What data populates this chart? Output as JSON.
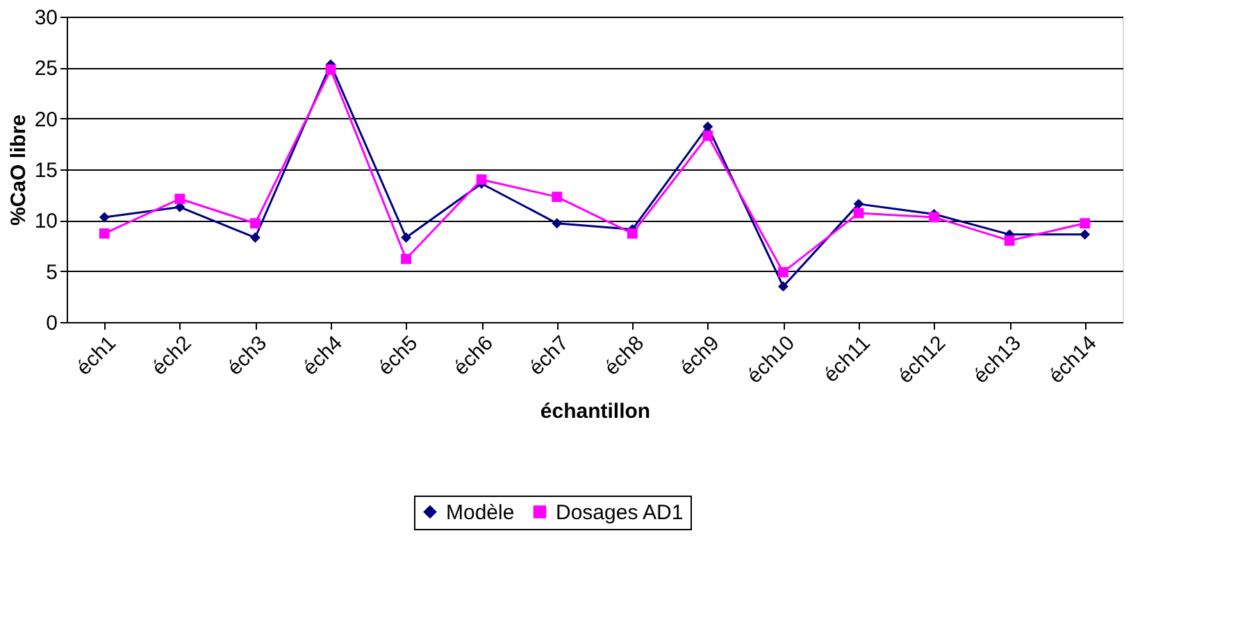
{
  "chart_data": {
    "type": "line",
    "xlabel": "échantillon",
    "ylabel": "%CaO libre",
    "categories": [
      "éch1",
      "éch2",
      "éch3",
      "éch4",
      "éch5",
      "éch6",
      "éch7",
      "éch8",
      "éch9",
      "éch10",
      "éch11",
      "éch12",
      "éch13",
      "éch14"
    ],
    "series": [
      {
        "name": "Modèle",
        "color": "#000080",
        "marker": "diamond",
        "values": [
          10.3,
          11.3,
          8.3,
          25.3,
          8.3,
          13.6,
          9.7,
          9.1,
          19.2,
          3.5,
          11.6,
          10.6,
          8.6,
          8.6
        ]
      },
      {
        "name": "Dosages AD1",
        "color": "#ff00ff",
        "marker": "square",
        "values": [
          8.7,
          12.1,
          9.7,
          24.8,
          6.2,
          14.0,
          12.3,
          8.7,
          18.3,
          4.9,
          10.7,
          10.3,
          8.0,
          9.7
        ]
      }
    ],
    "ylim": [
      0,
      30
    ],
    "yticks": [
      0,
      5,
      10,
      15,
      20,
      25,
      30
    ],
    "grid": "y",
    "legend": "bottom",
    "line_style": "solid"
  }
}
